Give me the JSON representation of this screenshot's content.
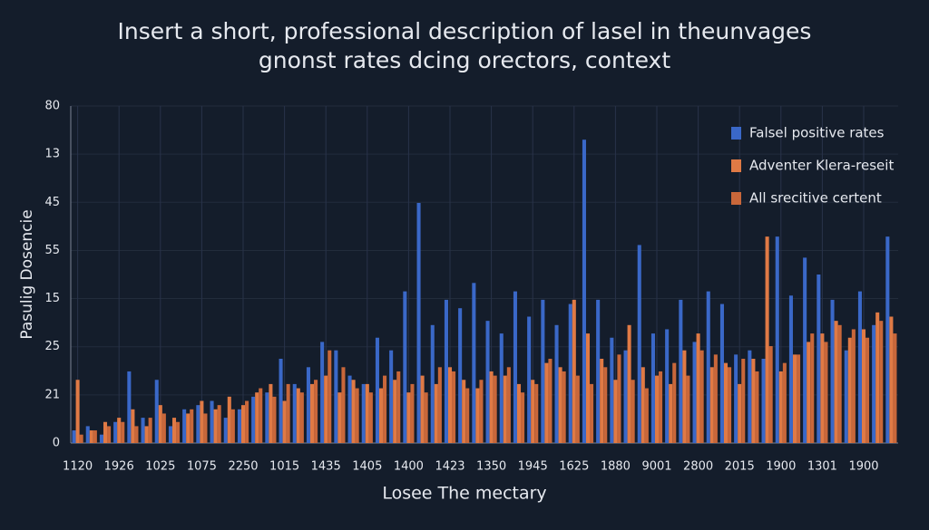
{
  "chart_data": {
    "type": "bar",
    "title": "Insert a short, professional description of lasel in theunvages",
    "subtitle": "gnonst rates dcing orectors, context",
    "ylabel": "Pasulig Dosencie",
    "xlabel": "Losee The mectary",
    "categories": [
      "1120",
      null,
      null,
      "1926",
      null,
      null,
      "1025",
      null,
      null,
      "1075",
      null,
      null,
      "2250",
      null,
      null,
      "1015",
      null,
      null,
      "1435",
      null,
      null,
      "1405",
      null,
      null,
      "1400",
      null,
      null,
      "1423",
      null,
      null,
      "1350",
      null,
      null,
      "1945",
      null,
      null,
      "1625",
      null,
      null,
      "1880",
      null,
      null,
      "9001",
      null,
      null,
      "2800",
      null,
      null,
      "2015",
      null,
      null,
      "1900",
      null,
      null,
      "1301",
      null,
      null,
      "1900",
      null,
      null
    ],
    "series": [
      {
        "name": "Falsel positive rates",
        "color": "#3a68c8",
        "values": [
          3,
          4,
          2,
          5,
          17,
          6,
          15,
          4,
          8,
          9,
          10,
          6,
          8,
          11,
          12,
          20,
          14,
          18,
          24,
          22,
          16,
          14,
          25,
          22,
          36,
          57,
          28,
          34,
          32,
          38,
          29,
          26,
          36,
          30,
          34,
          28,
          33,
          72,
          34,
          25,
          22,
          47,
          26,
          27,
          34,
          24,
          36,
          33,
          21,
          22,
          20,
          49,
          35,
          44,
          40,
          34,
          22,
          36,
          28,
          49
        ]
      },
      {
        "name": "Adventer Klera-reseit",
        "color": "#e07a45",
        "values": [
          15,
          3,
          5,
          6,
          8,
          4,
          9,
          6,
          7,
          10,
          8,
          11,
          9,
          12,
          14,
          10,
          13,
          14,
          16,
          12,
          15,
          14,
          13,
          15,
          12,
          16,
          14,
          18,
          15,
          13,
          17,
          16,
          14,
          15,
          19,
          18,
          34,
          26,
          20,
          15,
          28,
          18,
          16,
          14,
          22,
          26,
          18,
          19,
          14,
          20,
          49,
          17,
          21,
          24,
          26,
          29,
          25,
          27,
          31,
          30
        ]
      },
      {
        "name": "All srecitive certent",
        "color": "#c9673a",
        "values": [
          2,
          3,
          4,
          5,
          4,
          6,
          7,
          5,
          8,
          7,
          9,
          8,
          10,
          13,
          11,
          14,
          12,
          15,
          22,
          18,
          13,
          12,
          16,
          17,
          14,
          12,
          18,
          17,
          13,
          15,
          16,
          18,
          12,
          14,
          20,
          17,
          16,
          14,
          18,
          21,
          15,
          13,
          17,
          19,
          16,
          22,
          21,
          18,
          20,
          17,
          23,
          19,
          21,
          26,
          24,
          28,
          27,
          25,
          29,
          26
        ]
      }
    ],
    "ylim": [
      0,
      80
    ],
    "yticks": [
      0,
      {
        "value": 11.43,
        "label": "21"
      },
      {
        "value": 22.86,
        "label": "25"
      },
      {
        "value": 34.29,
        "label": "15"
      },
      {
        "value": 45.71,
        "label": "55"
      },
      {
        "value": 57.14,
        "label": "45"
      },
      {
        "value": 68.57,
        "label": "13"
      },
      80
    ],
    "grid": true,
    "legend": "upper right"
  }
}
